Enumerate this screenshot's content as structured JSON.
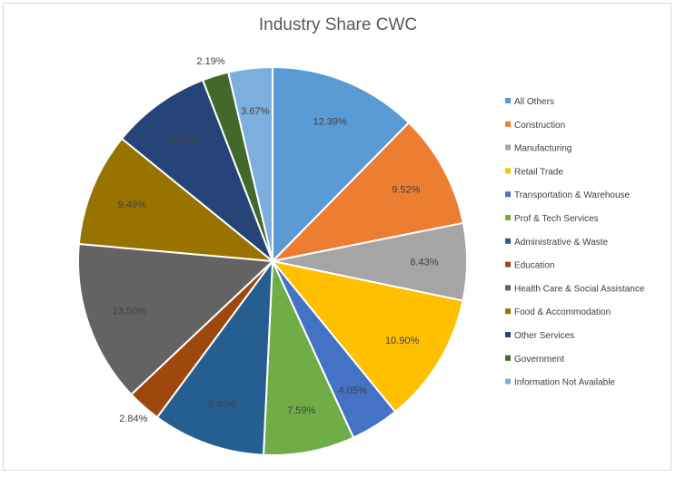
{
  "chart_data": {
    "type": "pie",
    "title": "Industry Share CWC",
    "legend_position": "right",
    "categories": [
      "All Others",
      "Construction",
      "Manufacturing",
      "Retail Trade",
      "Transportation & Warehouse",
      "Prof & Tech Services",
      "Administrative & Waste",
      "Education",
      "Health Care & Social Assistance",
      "Food & Accommodation",
      "Other Services",
      "Government",
      "Information Not Available"
    ],
    "values": [
      12.39,
      9.52,
      6.43,
      10.9,
      4.05,
      7.59,
      9.4,
      2.84,
      13.5,
      9.49,
      8.3,
      2.19,
      3.67
    ],
    "labels": [
      "12.39%",
      "9.52%",
      "6.43%",
      "10.90%",
      "4.05%",
      "7.59%",
      "9.40%",
      "2.84%",
      "13.50%",
      "9.49%",
      "8.30%",
      "2.19%",
      "3.67%"
    ],
    "colors": [
      "#5b9bd5",
      "#ed7d31",
      "#a5a5a5",
      "#ffc000",
      "#4472c4",
      "#70ad47",
      "#255e91",
      "#9e480e",
      "#636363",
      "#997300",
      "#264478",
      "#43682b",
      "#7cafdd"
    ]
  }
}
